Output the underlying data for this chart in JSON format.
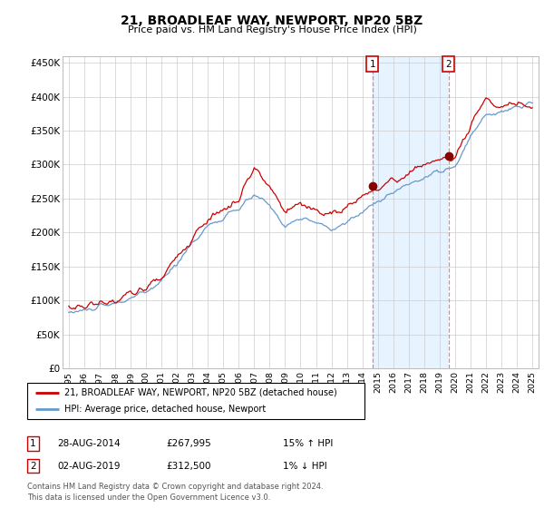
{
  "title": "21, BROADLEAF WAY, NEWPORT, NP20 5BZ",
  "subtitle": "Price paid vs. HM Land Registry's House Price Index (HPI)",
  "footnote": "Contains HM Land Registry data © Crown copyright and database right 2024.\nThis data is licensed under the Open Government Licence v3.0.",
  "legend_line1": "21, BROADLEAF WAY, NEWPORT, NP20 5BZ (detached house)",
  "legend_line2": "HPI: Average price, detached house, Newport",
  "sale1_date": "28-AUG-2014",
  "sale1_price": "£267,995",
  "sale1_hpi": "15% ↑ HPI",
  "sale2_date": "02-AUG-2019",
  "sale2_price": "£312,500",
  "sale2_hpi": "1% ↓ HPI",
  "hpi_color": "#6699cc",
  "price_color": "#cc0000",
  "vline_color": "#dd8888",
  "shade_color": "#ddeeff",
  "background_color": "#ffffff",
  "grid_color": "#cccccc",
  "ylim_min": 0,
  "ylim_max": 460000,
  "yticks": [
    0,
    50000,
    100000,
    150000,
    200000,
    250000,
    300000,
    350000,
    400000,
    450000
  ],
  "ytick_labels": [
    "£0",
    "£50K",
    "£100K",
    "£150K",
    "£200K",
    "£250K",
    "£300K",
    "£350K",
    "£400K",
    "£450K"
  ],
  "sale1_year": 2014.65,
  "sale2_year": 2019.58,
  "sale1_price_val": 267995,
  "sale2_price_val": 312500
}
